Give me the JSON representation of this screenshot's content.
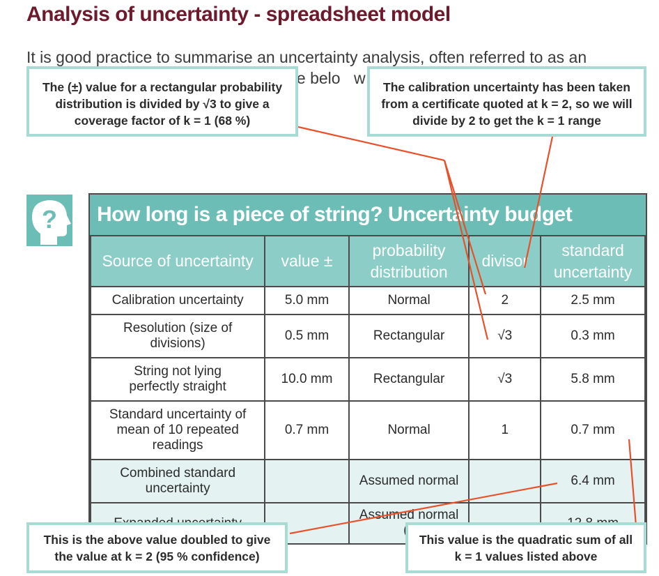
{
  "title": "Analysis of uncertainty - spreadsheet model",
  "intro": {
    "line1": "It is good practice to summarise an uncertainty analysis, often referred to as an",
    "line2_fragment_1": "ple belo",
    "line2_fragment_2": "w"
  },
  "table": {
    "title": "How long is a piece of string? Uncertainty budget",
    "headers": [
      "Source of uncertainty",
      "value ±",
      "probability distribution",
      "divisor",
      "standard uncertainty"
    ],
    "rows": [
      [
        "Calibration uncertainty",
        "5.0 mm",
        "Normal",
        "2",
        "2.5 mm"
      ],
      [
        "Resolution (size of divisions)",
        "0.5 mm",
        "Rectangular",
        "√3",
        "0.3 mm"
      ],
      [
        "String not lying perfectly straight",
        "10.0 mm",
        "Rectangular",
        "√3",
        "5.8 mm"
      ],
      [
        "Standard uncertainty of mean of 10 repeated readings",
        "0.7 mm",
        "Normal",
        "1",
        "0.7 mm"
      ],
      [
        "Combined standard uncertainty",
        "",
        "Assumed normal",
        "",
        "6.4 mm"
      ],
      [
        "Expanded uncertainty",
        "",
        "Assumed normal (k",
        "",
        "12.8 mm"
      ]
    ]
  },
  "callouts": {
    "rectangular": "The (±) value for a rectangular probability distribution is divided by √3 to give a coverage factor of k = 1 (68 %)",
    "calibration": "The calibration uncertainty has been taken from a certificate quoted at k = 2, so we will divide by 2 to get the k = 1 range",
    "doubled": "This is the above value doubled to give the value at k = 2 (95 % confidence)",
    "quadratic": "This value is the quadratic sum of all k = 1 values listed above"
  },
  "colors": {
    "title": "#6d1a2c",
    "teal": "#6bbdb5",
    "teal_light": "#8ccec7",
    "shade": "#e4f3f1",
    "callout_border": "#a9dbd5",
    "arrow": "#e8502a"
  },
  "icons": [
    "question-head-icon"
  ]
}
